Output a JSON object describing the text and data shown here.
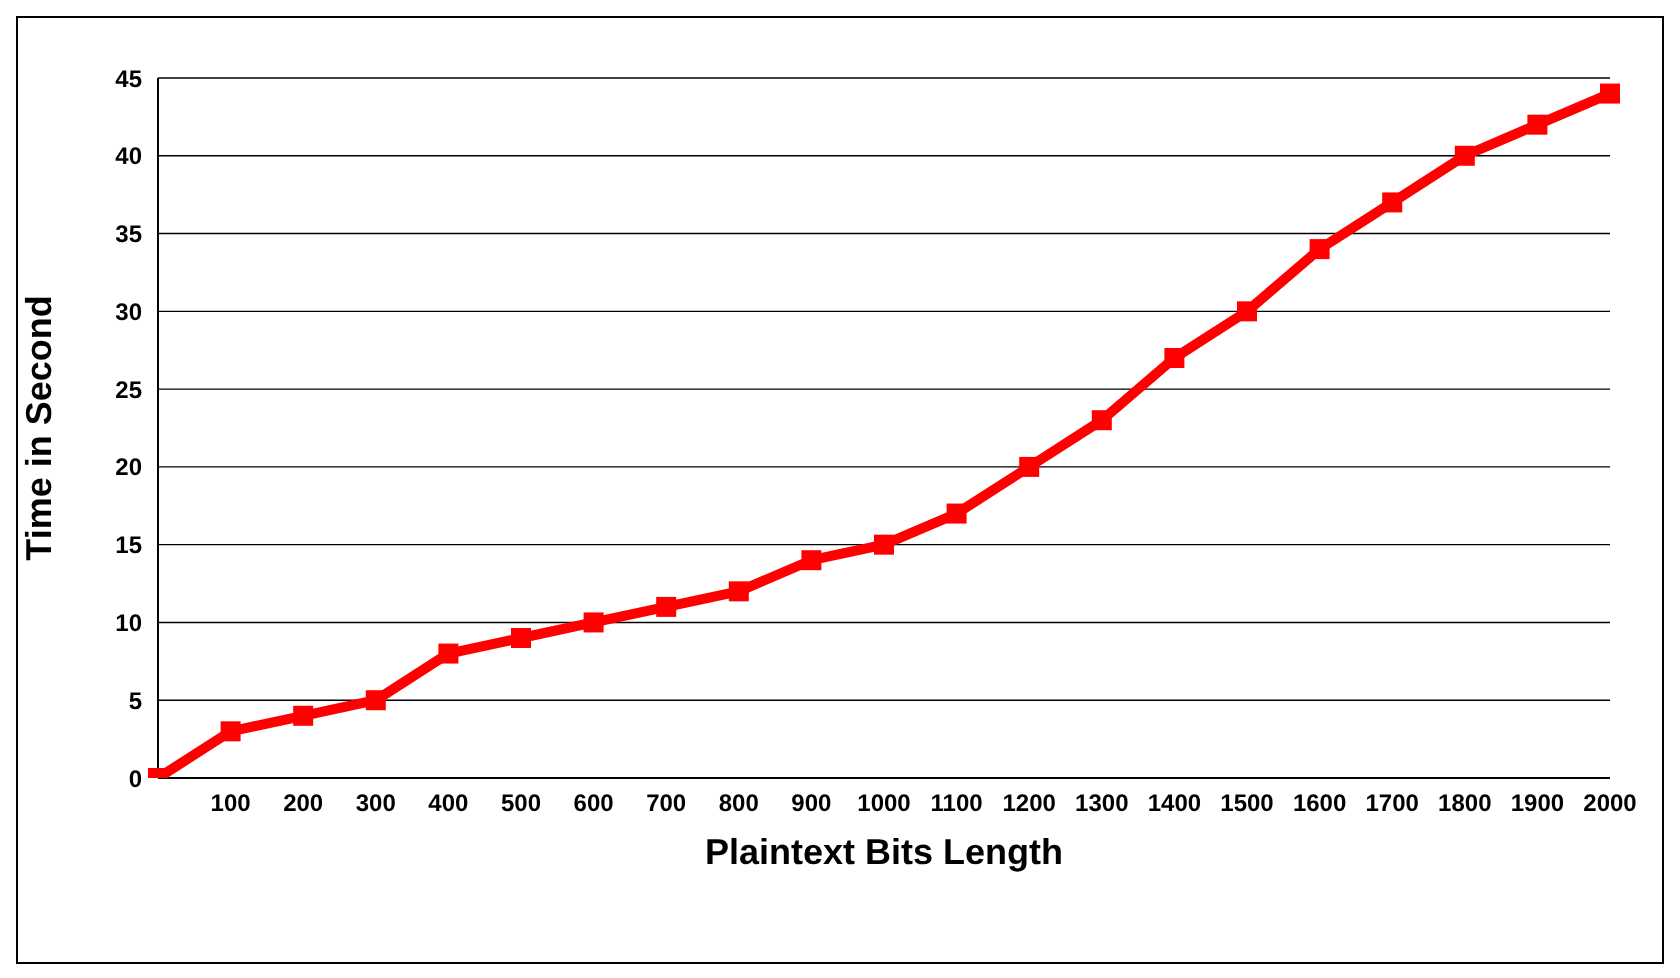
{
  "chart_data": {
    "type": "line",
    "xlabel": "Plaintext Bits Length",
    "ylabel": "Time in Second",
    "categories": [
      null,
      "100",
      "200",
      "300",
      "400",
      "500",
      "600",
      "700",
      "800",
      "900",
      "1000",
      "1100",
      "1200",
      "1300",
      "1400",
      "1500",
      "1600",
      "1700",
      "1800",
      "1900",
      "2000"
    ],
    "series": [
      {
        "color": "#ff0000",
        "values": [
          0,
          3,
          4,
          5,
          8,
          9,
          10,
          11,
          12,
          14,
          15,
          17,
          20,
          23,
          27,
          30,
          34,
          37,
          40,
          42,
          44
        ]
      }
    ],
    "ylim": [
      0,
      45
    ],
    "yticks": [
      0,
      5,
      10,
      15,
      20,
      25,
      30,
      35,
      40,
      45
    ],
    "grid": "y",
    "legend": false,
    "marker": "square",
    "line_style": "solid"
  }
}
